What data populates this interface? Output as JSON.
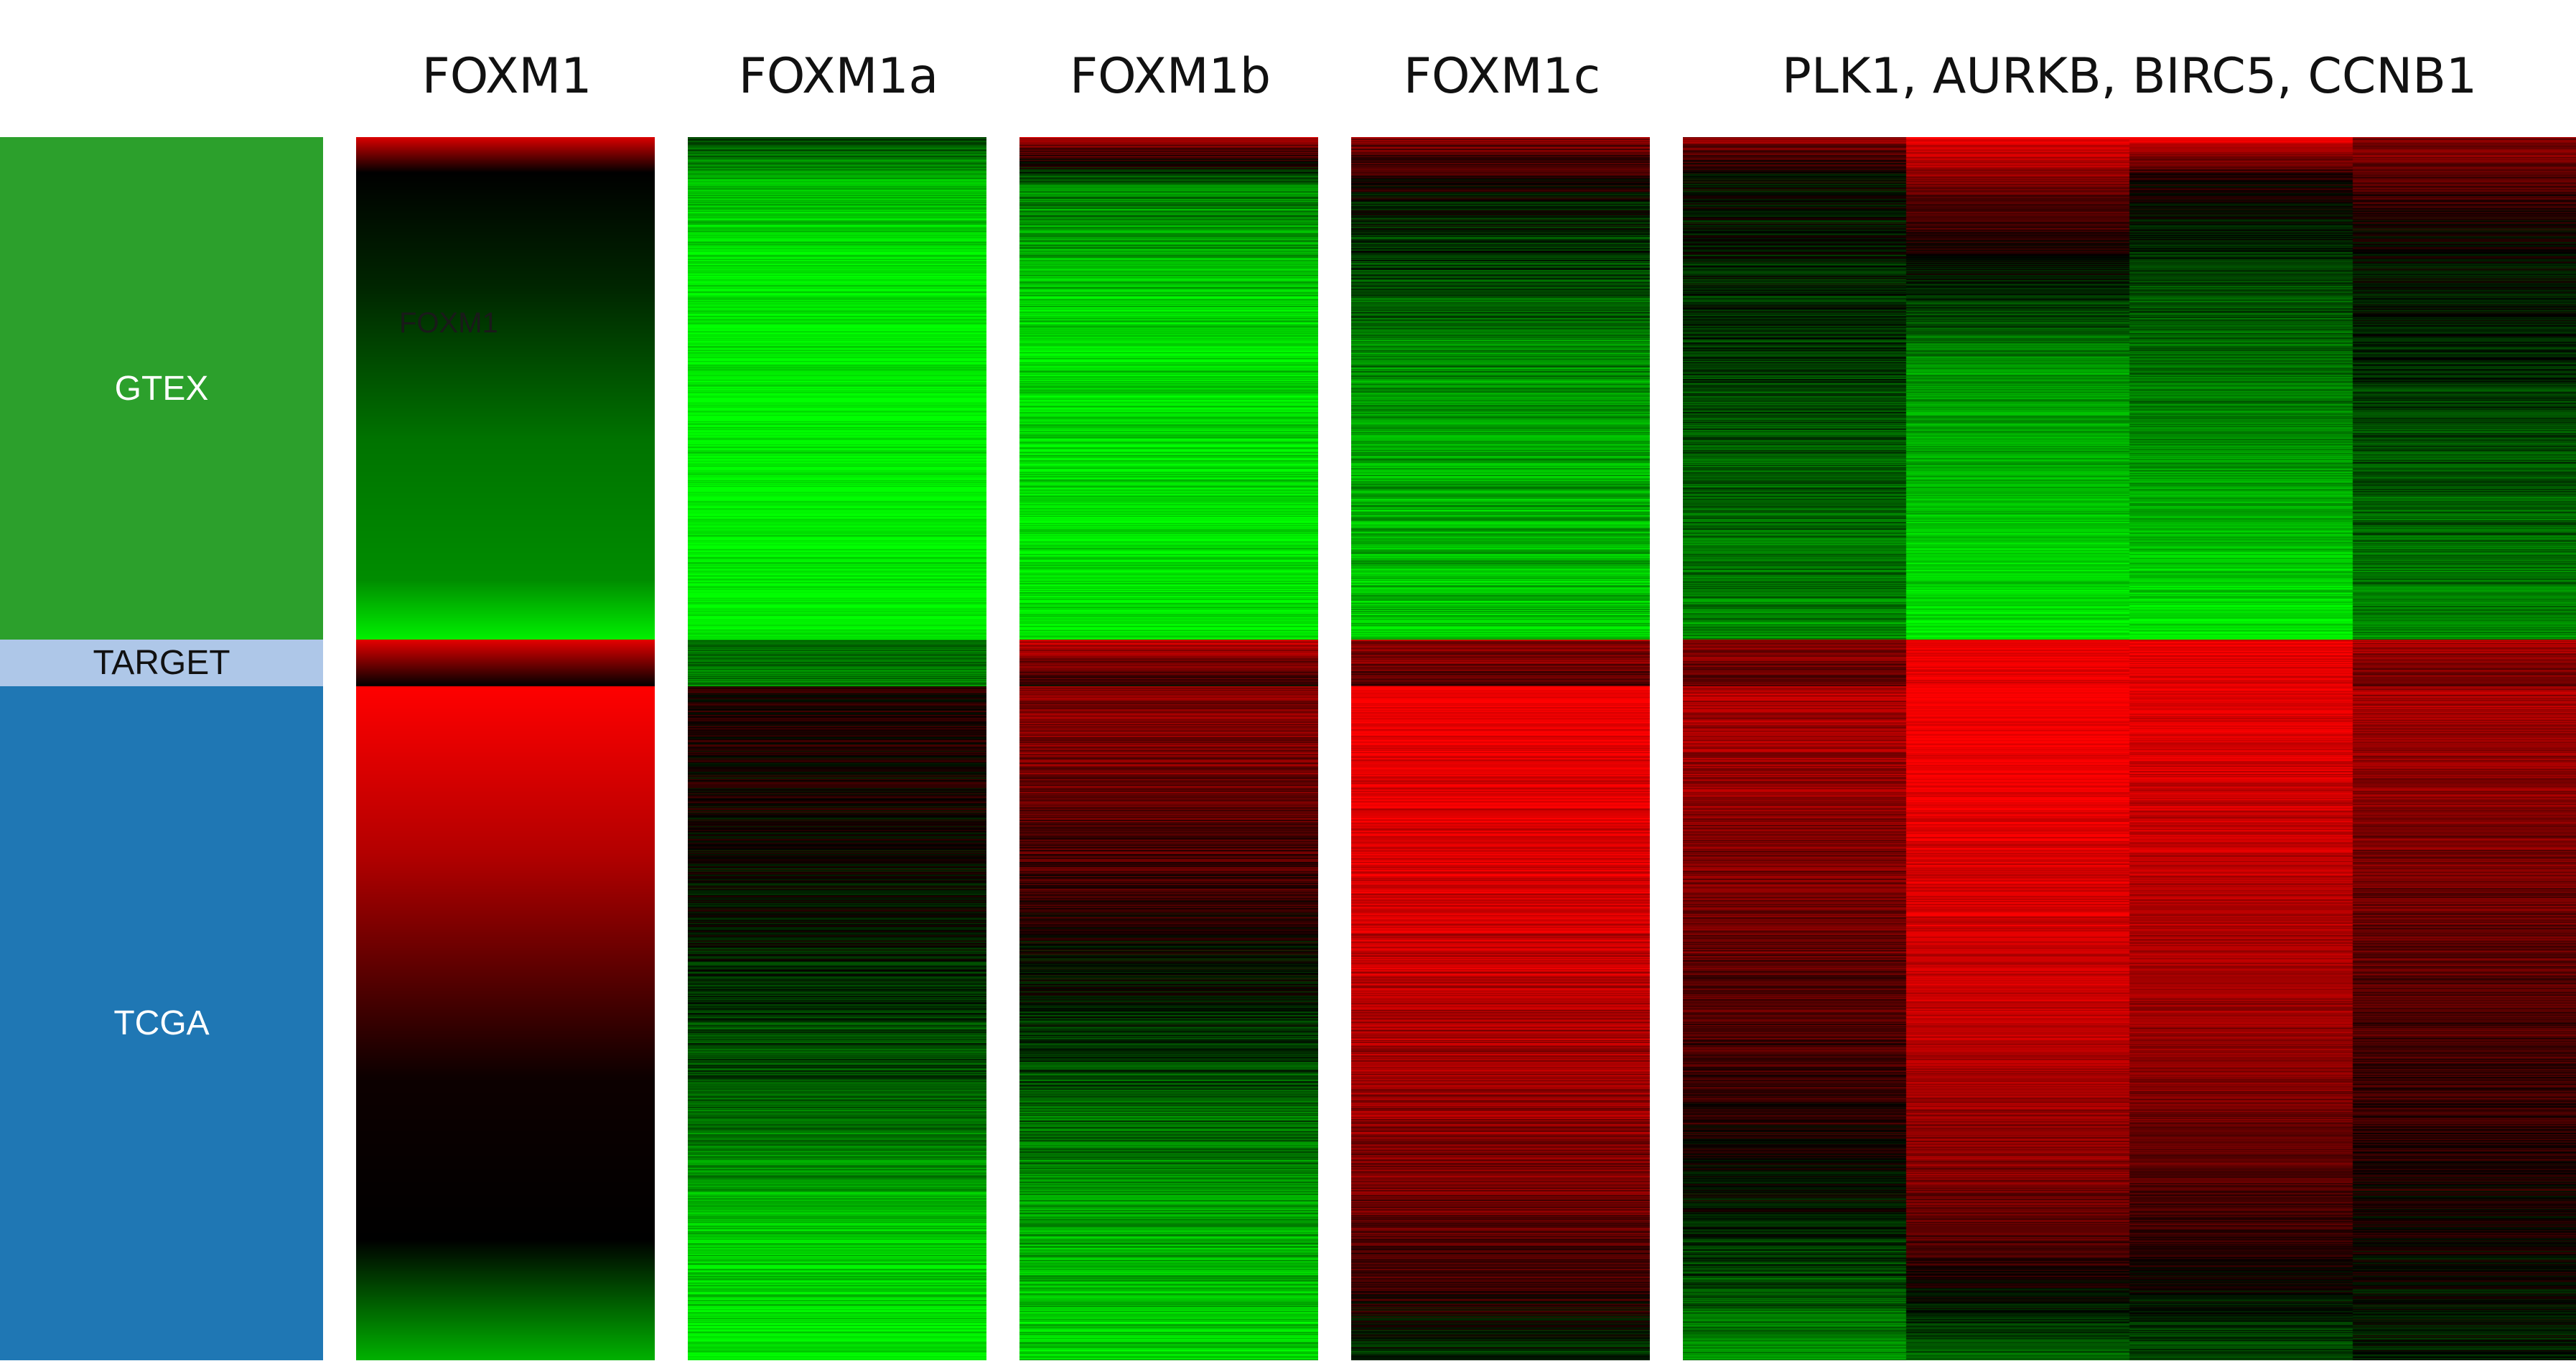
{
  "chart_data": {
    "type": "heatmap",
    "columns": [
      "FOXM1",
      "FOXM1a",
      "FOXM1b",
      "FOXM1c",
      "PLK1, AURKB, BIRC5, CCNB1"
    ],
    "sub_columns": {
      "PLK1, AURKB, BIRC5, CCNB1": [
        "PLK1",
        "AURKB",
        "BIRC5",
        "CCNB1"
      ]
    },
    "row_groups": [
      {
        "label": "GTEX",
        "color": "#2ca02c",
        "text_color": "#ffffff",
        "fraction": 0.411
      },
      {
        "label": "TARGET",
        "color": "#aec7e8",
        "text_color": "#111111",
        "fraction": 0.038
      },
      {
        "label": "TCGA",
        "color": "#1f77b4",
        "text_color": "#ffffff",
        "fraction": 0.551
      }
    ],
    "overlay_label": "FOXM1",
    "color_scale": {
      "low": "#00ff00",
      "mid": "#000000",
      "high": "#ff0000"
    },
    "value_range": [
      -1,
      1
    ],
    "profiles": {
      "FOXM1": {
        "GTEX": [
          [
            0,
            0.85
          ],
          [
            0.07,
            0
          ],
          [
            0.3,
            -0.15
          ],
          [
            0.6,
            -0.45
          ],
          [
            0.88,
            -0.55
          ],
          [
            1,
            -0.95
          ]
        ],
        "TARGET": [
          [
            0,
            0.9
          ],
          [
            1,
            0
          ]
        ],
        "TCGA": [
          [
            0,
            1
          ],
          [
            0.25,
            0.7
          ],
          [
            0.58,
            0.05
          ],
          [
            0.82,
            0
          ],
          [
            1,
            -0.7
          ]
        ],
        "noise": 0.0
      },
      "FOXM1a": {
        "GTEX": [
          [
            0,
            -0.3
          ],
          [
            0.1,
            -0.75
          ],
          [
            0.3,
            -0.95
          ],
          [
            1,
            -1
          ]
        ],
        "TARGET": [
          [
            0,
            -0.35
          ],
          [
            1,
            -0.5
          ]
        ],
        "TCGA": [
          [
            0,
            0.15
          ],
          [
            0.35,
            -0.05
          ],
          [
            0.6,
            -0.35
          ],
          [
            0.8,
            -0.75
          ],
          [
            1,
            -0.95
          ]
        ],
        "noise": 0.22
      },
      "FOXM1b": {
        "GTEX": [
          [
            0,
            0.65
          ],
          [
            0.1,
            -0.5
          ],
          [
            0.35,
            -0.85
          ],
          [
            1,
            -0.95
          ]
        ],
        "TARGET": [
          [
            0,
            0.75
          ],
          [
            1,
            0.1
          ]
        ],
        "TCGA": [
          [
            0,
            0.55
          ],
          [
            0.3,
            0.2
          ],
          [
            0.55,
            -0.25
          ],
          [
            0.8,
            -0.65
          ],
          [
            1,
            -0.85
          ]
        ],
        "noise": 0.25
      },
      "FOXM1c": {
        "GTEX": [
          [
            0,
            0.5
          ],
          [
            0.12,
            -0.05
          ],
          [
            0.45,
            -0.55
          ],
          [
            1,
            -0.8
          ]
        ],
        "TARGET": [
          [
            0,
            0.6
          ],
          [
            1,
            0.3
          ]
        ],
        "TCGA": [
          [
            0,
            1
          ],
          [
            0.3,
            0.85
          ],
          [
            0.65,
            0.55
          ],
          [
            0.88,
            0.25
          ],
          [
            1,
            -0.2
          ]
        ],
        "noise": 0.25
      },
      "PLK1": {
        "GTEX": [
          [
            0,
            0.6
          ],
          [
            0.07,
            0
          ],
          [
            0.5,
            -0.25
          ],
          [
            1,
            -0.55
          ]
        ],
        "TARGET": [
          [
            0,
            0.5
          ],
          [
            1,
            0.35
          ]
        ],
        "TCGA": [
          [
            0,
            0.7
          ],
          [
            0.5,
            0.3
          ],
          [
            0.75,
            0
          ],
          [
            1,
            -0.55
          ]
        ],
        "noise": 0.22
      },
      "AURKB": {
        "GTEX": [
          [
            0,
            0.95
          ],
          [
            0.12,
            0.35
          ],
          [
            0.45,
            -0.55
          ],
          [
            1,
            -0.95
          ]
        ],
        "TARGET": [
          [
            0,
            0.95
          ],
          [
            1,
            0.9
          ]
        ],
        "TCGA": [
          [
            0,
            1
          ],
          [
            0.5,
            0.75
          ],
          [
            0.8,
            0.4
          ],
          [
            1,
            -0.4
          ]
        ],
        "noise": 0.18
      },
      "BIRC5": {
        "GTEX": [
          [
            0,
            0.95
          ],
          [
            0.08,
            0.1
          ],
          [
            0.3,
            -0.3
          ],
          [
            1,
            -0.9
          ]
        ],
        "TARGET": [
          [
            0,
            0.9
          ],
          [
            1,
            0.85
          ]
        ],
        "TCGA": [
          [
            0,
            0.9
          ],
          [
            0.5,
            0.6
          ],
          [
            0.8,
            0.25
          ],
          [
            1,
            -0.3
          ]
        ],
        "noise": 0.18
      },
      "CCNB1": {
        "GTEX": [
          [
            0,
            0.55
          ],
          [
            0.2,
            0
          ],
          [
            1,
            -0.55
          ]
        ],
        "TARGET": [
          [
            0,
            0.65
          ],
          [
            1,
            0.4
          ]
        ],
        "TCGA": [
          [
            0,
            0.65
          ],
          [
            0.5,
            0.3
          ],
          [
            0.8,
            0.05
          ],
          [
            1,
            -0.1
          ]
        ],
        "noise": 0.2
      }
    }
  }
}
